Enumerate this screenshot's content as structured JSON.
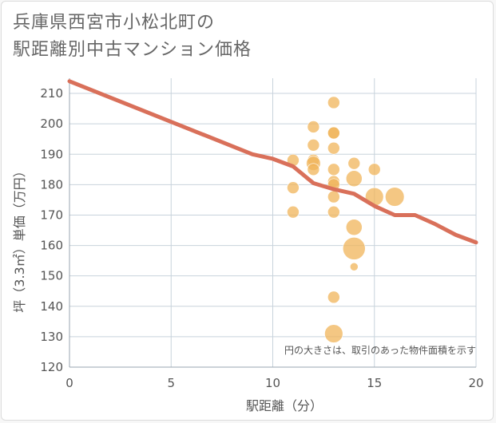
{
  "title_lines": [
    "兵庫県西宮市小松北町の",
    "駅距離別中古マンション価格"
  ],
  "chart_data": {
    "type": "scatter",
    "title": "兵庫県西宮市小松北町の駅距離別中古マンション価格",
    "xlabel": "駅距離（分）",
    "ylabel": "坪（3.3㎡）単価（万円）",
    "xlim": [
      0,
      20
    ],
    "ylim": [
      120,
      215
    ],
    "x_ticks": [
      0,
      5,
      10,
      15,
      20
    ],
    "y_ticks": [
      120,
      130,
      140,
      150,
      160,
      170,
      180,
      190,
      200,
      210
    ],
    "grid": true,
    "note": "円の大きさは、取引のあった物件面積を示す",
    "bubble_color": "#f0b45a",
    "line_color": "#d9705a",
    "points": [
      {
        "x": 11,
        "y": 188,
        "s": 1
      },
      {
        "x": 11,
        "y": 179,
        "s": 1
      },
      {
        "x": 11,
        "y": 171,
        "s": 1
      },
      {
        "x": 12,
        "y": 199,
        "s": 1
      },
      {
        "x": 12,
        "y": 193,
        "s": 1
      },
      {
        "x": 12,
        "y": 188,
        "s": 1
      },
      {
        "x": 12,
        "y": 187,
        "s": 1.4
      },
      {
        "x": 12,
        "y": 185,
        "s": 1
      },
      {
        "x": 13,
        "y": 207,
        "s": 1
      },
      {
        "x": 13,
        "y": 197,
        "s": 1
      },
      {
        "x": 13,
        "y": 197,
        "s": 1
      },
      {
        "x": 13,
        "y": 192,
        "s": 1
      },
      {
        "x": 13,
        "y": 185,
        "s": 1
      },
      {
        "x": 13,
        "y": 181,
        "s": 1
      },
      {
        "x": 13,
        "y": 180,
        "s": 1
      },
      {
        "x": 13,
        "y": 176,
        "s": 1
      },
      {
        "x": 13,
        "y": 171,
        "s": 1
      },
      {
        "x": 13,
        "y": 143,
        "s": 1
      },
      {
        "x": 13,
        "y": 131,
        "s": 2.3
      },
      {
        "x": 14,
        "y": 187,
        "s": 1
      },
      {
        "x": 14,
        "y": 182,
        "s": 1.8
      },
      {
        "x": 14,
        "y": 166,
        "s": 1.8
      },
      {
        "x": 14,
        "y": 159,
        "s": 3.5
      },
      {
        "x": 14,
        "y": 153,
        "s": 0.45
      },
      {
        "x": 15,
        "y": 185,
        "s": 1
      },
      {
        "x": 15,
        "y": 176,
        "s": 2.3
      },
      {
        "x": 16,
        "y": 176,
        "s": 2.5
      }
    ],
    "trend_line": {
      "x": [
        0,
        9,
        10,
        11,
        12,
        13,
        14,
        15,
        16,
        17,
        18,
        19,
        20
      ],
      "y": [
        214,
        190,
        188.5,
        186,
        180.5,
        178.5,
        177,
        173,
        170,
        170,
        167,
        163.5,
        161
      ]
    }
  }
}
